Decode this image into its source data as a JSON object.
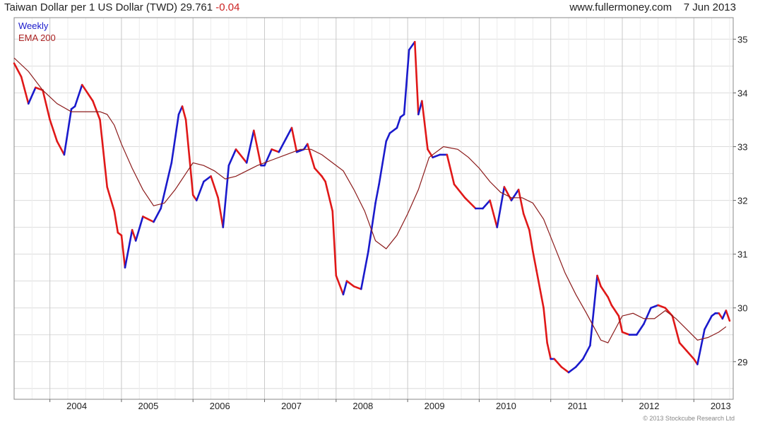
{
  "header": {
    "title": "Taiwan Dollar per 1 US Dollar (TWD)",
    "last": "29.761",
    "change": "-0.04",
    "site": "www.fullermoney.com",
    "date": "7 Jun 2013"
  },
  "copyright": "© 2013 Stockcube Research Ltd",
  "colors": {
    "up": "#1a1acc",
    "down": "#e01818",
    "ema": "#8b1a1a",
    "grid": "#dcdcdc"
  },
  "chart_data": {
    "type": "line",
    "title": "Taiwan Dollar per 1 US Dollar (TWD)",
    "xlabel": "",
    "ylabel": "",
    "xlim": [
      2003.5,
      2013.55
    ],
    "ylim": [
      28.3,
      35.4
    ],
    "x_ticks": [
      2004,
      2005,
      2006,
      2007,
      2008,
      2009,
      2010,
      2011,
      2012,
      2013
    ],
    "x_tick_labels": [
      "2004",
      "2005",
      "2006",
      "2007",
      "2008",
      "2009",
      "2010",
      "2011",
      "2012",
      "2013"
    ],
    "y_ticks": [
      29,
      30,
      31,
      32,
      33,
      34,
      35
    ],
    "y_tick_labels": [
      "29",
      "30",
      "31",
      "32",
      "33",
      "34",
      "35"
    ],
    "grid": true,
    "legend_position": "top-left",
    "series": [
      {
        "name": "Weekly",
        "x": [
          2003.5,
          2003.6,
          2003.7,
          2003.8,
          2003.9,
          2004.0,
          2004.1,
          2004.2,
          2004.3,
          2004.35,
          2004.45,
          2004.6,
          2004.7,
          2004.8,
          2004.9,
          2004.95,
          2005.0,
          2005.05,
          2005.15,
          2005.2,
          2005.3,
          2005.45,
          2005.55,
          2005.7,
          2005.8,
          2005.85,
          2005.9,
          2005.95,
          2006.0,
          2006.05,
          2006.15,
          2006.25,
          2006.35,
          2006.42,
          2006.5,
          2006.6,
          2006.75,
          2006.85,
          2006.95,
          2007.0,
          2007.1,
          2007.2,
          2007.3,
          2007.38,
          2007.45,
          2007.55,
          2007.6,
          2007.7,
          2007.8,
          2007.85,
          2007.95,
          2008.0,
          2008.1,
          2008.15,
          2008.25,
          2008.35,
          2008.45,
          2008.55,
          2008.6,
          2008.7,
          2008.75,
          2008.85,
          2008.9,
          2008.95,
          2009.02,
          2009.1,
          2009.15,
          2009.2,
          2009.28,
          2009.35,
          2009.45,
          2009.55,
          2009.65,
          2009.8,
          2009.95,
          2010.05,
          2010.15,
          2010.25,
          2010.35,
          2010.45,
          2010.55,
          2010.62,
          2010.7,
          2010.75,
          2010.8,
          2010.85,
          2010.9,
          2010.95,
          2011.0,
          2011.05,
          2011.15,
          2011.25,
          2011.35,
          2011.45,
          2011.55,
          2011.65,
          2011.7,
          2011.8,
          2011.85,
          2011.95,
          2012.0,
          2012.1,
          2012.2,
          2012.3,
          2012.4,
          2012.5,
          2012.6,
          2012.7,
          2012.8,
          2012.9,
          2013.0,
          2013.05,
          2013.15,
          2013.25,
          2013.3,
          2013.35,
          2013.4,
          2013.45,
          2013.5
        ],
        "values": [
          34.55,
          34.3,
          33.8,
          34.1,
          34.05,
          33.5,
          33.1,
          32.85,
          33.7,
          33.75,
          34.15,
          33.85,
          33.5,
          32.25,
          31.8,
          31.4,
          31.35,
          30.75,
          31.45,
          31.25,
          31.7,
          31.6,
          31.85,
          32.7,
          33.6,
          33.75,
          33.5,
          32.8,
          32.1,
          32.0,
          32.35,
          32.45,
          32.05,
          31.5,
          32.65,
          32.95,
          32.7,
          33.3,
          32.65,
          32.65,
          32.95,
          32.9,
          33.15,
          33.35,
          32.9,
          32.95,
          33.05,
          32.6,
          32.45,
          32.35,
          31.8,
          30.6,
          30.25,
          30.5,
          30.4,
          30.35,
          31.05,
          31.95,
          32.3,
          33.1,
          33.25,
          33.35,
          33.55,
          33.6,
          34.8,
          34.95,
          33.6,
          33.85,
          32.95,
          32.8,
          32.85,
          32.85,
          32.3,
          32.05,
          31.85,
          31.85,
          32.0,
          31.5,
          32.25,
          32.0,
          32.2,
          31.75,
          31.45,
          31.05,
          30.7,
          30.35,
          30.0,
          29.35,
          29.05,
          29.05,
          28.9,
          28.8,
          28.9,
          29.05,
          29.3,
          30.6,
          30.4,
          30.2,
          30.05,
          29.85,
          29.55,
          29.5,
          29.5,
          29.7,
          30.0,
          30.05,
          30.0,
          29.85,
          29.35,
          29.2,
          29.05,
          28.95,
          29.6,
          29.85,
          29.9,
          29.9,
          29.8,
          29.95,
          29.76
        ]
      },
      {
        "name": "EMA 200",
        "x": [
          2003.5,
          2003.7,
          2003.9,
          2004.1,
          2004.3,
          2004.5,
          2004.7,
          2004.8,
          2004.9,
          2005.0,
          2005.15,
          2005.3,
          2005.45,
          2005.6,
          2005.75,
          2005.9,
          2006.0,
          2006.15,
          2006.3,
          2006.45,
          2006.6,
          2006.75,
          2006.9,
          2007.1,
          2007.3,
          2007.5,
          2007.65,
          2007.8,
          2007.95,
          2008.1,
          2008.25,
          2008.4,
          2008.55,
          2008.7,
          2008.85,
          2009.0,
          2009.15,
          2009.3,
          2009.5,
          2009.7,
          2009.85,
          2010.0,
          2010.15,
          2010.3,
          2010.45,
          2010.6,
          2010.75,
          2010.9,
          2011.05,
          2011.2,
          2011.35,
          2011.5,
          2011.6,
          2011.7,
          2011.8,
          2011.9,
          2012.0,
          2012.15,
          2012.3,
          2012.45,
          2012.6,
          2012.75,
          2012.9,
          2013.05,
          2013.2,
          2013.35,
          2013.45
        ],
        "values": [
          34.65,
          34.4,
          34.05,
          33.8,
          33.65,
          33.65,
          33.65,
          33.6,
          33.4,
          33.05,
          32.6,
          32.2,
          31.9,
          31.95,
          32.2,
          32.5,
          32.7,
          32.65,
          32.55,
          32.4,
          32.45,
          32.55,
          32.65,
          32.75,
          32.85,
          32.95,
          32.95,
          32.85,
          32.7,
          32.55,
          32.2,
          31.8,
          31.25,
          31.1,
          31.35,
          31.75,
          32.2,
          32.8,
          33.0,
          32.95,
          32.8,
          32.6,
          32.35,
          32.15,
          32.05,
          32.05,
          31.95,
          31.65,
          31.15,
          30.65,
          30.25,
          29.9,
          29.65,
          29.4,
          29.35,
          29.6,
          29.85,
          29.9,
          29.8,
          29.8,
          29.95,
          29.8,
          29.6,
          29.4,
          29.45,
          29.55,
          29.65
        ]
      }
    ]
  }
}
